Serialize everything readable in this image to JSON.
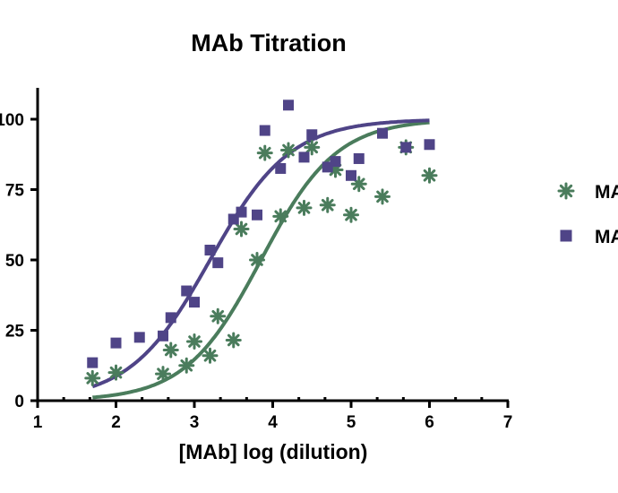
{
  "chart_data": {
    "type": "scatter",
    "title": "MAb Titration",
    "xlabel": "[MAb] log (dilution)",
    "ylabel": "",
    "xlim": [
      1,
      7
    ],
    "ylim": [
      0,
      110
    ],
    "x_ticks": [
      "1",
      "2",
      "3",
      "4",
      "5",
      "6",
      "7"
    ],
    "y_ticks": [
      "0",
      "25",
      "50",
      "75",
      "100"
    ],
    "x_tick_values": [
      1,
      2,
      3,
      4,
      5,
      6,
      7
    ],
    "y_tick_values": [
      0,
      25,
      50,
      75,
      100
    ],
    "grid": false,
    "legend_position": "right",
    "series": [
      {
        "name": "MA",
        "marker": "asterisk",
        "color": "#4a7c5c",
        "points": [
          [
            1.7,
            8
          ],
          [
            2.0,
            10
          ],
          [
            2.6,
            9.5
          ],
          [
            2.7,
            18
          ],
          [
            2.9,
            12.5
          ],
          [
            3.0,
            21
          ],
          [
            3.2,
            16
          ],
          [
            3.3,
            30
          ],
          [
            3.5,
            21.5
          ],
          [
            3.6,
            61
          ],
          [
            3.8,
            50
          ],
          [
            3.9,
            88
          ],
          [
            4.1,
            65.5
          ],
          [
            4.2,
            89
          ],
          [
            4.4,
            68.5
          ],
          [
            4.5,
            90
          ],
          [
            4.7,
            69.5
          ],
          [
            4.8,
            82
          ],
          [
            5.0,
            66
          ],
          [
            5.1,
            77
          ],
          [
            5.4,
            72.5
          ],
          [
            5.7,
            90
          ],
          [
            6.0,
            80
          ]
        ],
        "fit": {
          "model": "sigmoid",
          "top": 100,
          "bottom": 0,
          "logEC50": 3.85,
          "slope": 0.9
        }
      },
      {
        "name": "MA",
        "marker": "square",
        "color": "#4f4487",
        "points": [
          [
            1.7,
            13.5
          ],
          [
            2.0,
            20.5
          ],
          [
            2.3,
            22.5
          ],
          [
            2.6,
            23
          ],
          [
            2.7,
            29.5
          ],
          [
            2.9,
            39
          ],
          [
            3.0,
            35
          ],
          [
            3.2,
            53.5
          ],
          [
            3.3,
            49
          ],
          [
            3.5,
            64.5
          ],
          [
            3.6,
            67
          ],
          [
            3.8,
            66
          ],
          [
            3.9,
            96
          ],
          [
            4.1,
            82.5
          ],
          [
            4.2,
            105
          ],
          [
            4.4,
            86.5
          ],
          [
            4.5,
            94.5
          ],
          [
            4.7,
            83
          ],
          [
            4.8,
            85
          ],
          [
            5.0,
            80
          ],
          [
            5.1,
            86
          ],
          [
            5.4,
            95
          ],
          [
            5.7,
            90
          ],
          [
            6.0,
            91
          ]
        ],
        "fit": {
          "model": "sigmoid",
          "top": 100,
          "bottom": 0,
          "logEC50": 3.2,
          "slope": 0.85
        }
      }
    ]
  }
}
